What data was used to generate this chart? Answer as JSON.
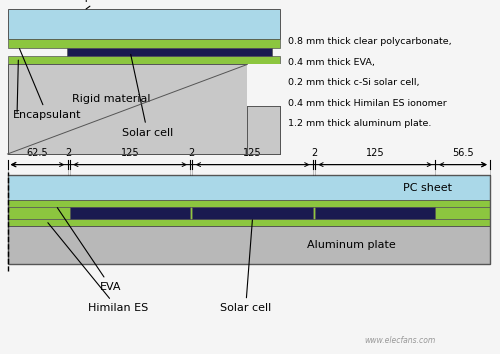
{
  "fig_bg": "#f5f5f5",
  "colors": {
    "pc_sheet": "#aad8e8",
    "eva_green": "#8cc63f",
    "solar_cell": "#1a1a50",
    "aluminum": "#b8b8b8",
    "rigid_material": "#c8c8c8",
    "border": "#555555",
    "white": "#ffffff",
    "dim_line": "#000000"
  },
  "right_text": [
    "0.8 mm thick clear polycarbonate,",
    "0.4 mm thick EVA,",
    "0.2 mm thick c-Si solar cell,",
    "0.4 mm thick Himilan ES ionomer",
    "1.2 mm thick aluminum plate."
  ],
  "dim_values": [
    "62.5",
    "2",
    "125",
    "2",
    "125",
    "2",
    "125",
    "56.5"
  ],
  "dim_total": 500,
  "dim_parts": [
    62.5,
    2,
    125,
    2,
    125,
    2,
    125,
    56.5
  ],
  "watermark": "www.elecfans.com"
}
